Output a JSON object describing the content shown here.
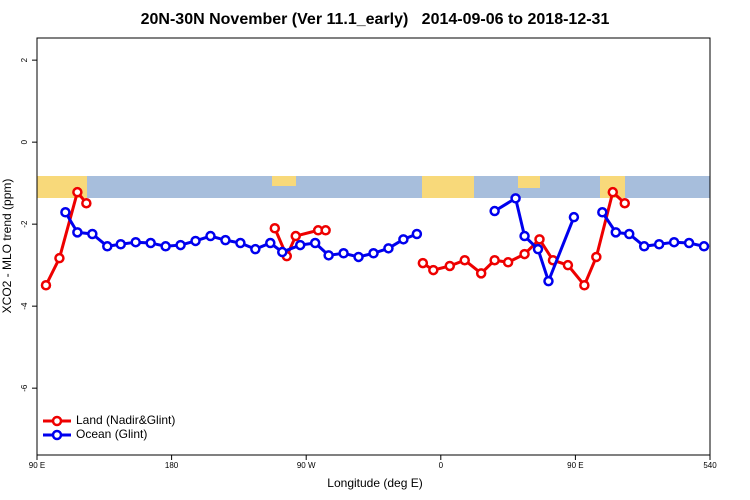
{
  "chart_data": {
    "type": "line",
    "title": "20N-30N November (Ver 11.1_early)   2014-09-06 to 2018-12-31",
    "xlabel": "Longitude (deg E)",
    "ylabel": "XCO2 - MLO trend (ppm)",
    "xlim": [
      90,
      540
    ],
    "xticks": [
      {
        "value": 90,
        "label": "90 E"
      },
      180,
      {
        "value": 270,
        "label": "90 W"
      },
      {
        "value": 360,
        "label": "0"
      },
      {
        "value": 450,
        "label": "90 E"
      },
      540
    ],
    "ylim": [
      -7.63,
      2.54
    ],
    "yticks": [
      -6,
      -4,
      -2,
      0,
      2
    ],
    "legend": "bottom-left",
    "series": [
      {
        "name": "Land (Nadir&Glint)",
        "color": "#ee0000",
        "x": [
          96,
          105,
          117,
          123,
          null,
          249,
          257,
          263,
          278,
          283,
          null,
          348,
          355,
          366,
          376,
          387,
          396,
          405,
          416,
          426,
          435,
          445,
          456,
          464,
          475,
          483
        ],
        "values": [
          -3.49,
          -2.83,
          -1.22,
          -1.49,
          null,
          -2.1,
          -2.78,
          -2.29,
          -2.15,
          -2.15,
          null,
          -2.95,
          -3.12,
          -3.02,
          -2.88,
          -3.2,
          -2.88,
          -2.93,
          -2.73,
          -2.37,
          -2.88,
          -3.0,
          -3.49,
          -2.8,
          -1.22,
          -1.49
        ]
      },
      {
        "name": "Ocean (Glint)",
        "color": "#0000ee",
        "x": [
          109,
          117,
          127,
          137,
          146,
          156,
          166,
          176,
          186,
          196,
          206,
          216,
          226,
          236,
          246,
          254,
          266,
          276,
          285,
          295,
          305,
          315,
          325,
          335,
          344,
          null,
          396,
          410,
          416,
          425,
          432,
          449,
          null,
          468,
          477,
          486,
          496,
          506,
          516,
          526,
          536
        ],
        "values": [
          -1.71,
          -2.2,
          -2.24,
          -2.54,
          -2.49,
          -2.44,
          -2.46,
          -2.54,
          -2.51,
          -2.41,
          -2.29,
          -2.39,
          -2.46,
          -2.61,
          -2.46,
          -2.68,
          -2.51,
          -2.46,
          -2.76,
          -2.71,
          -2.8,
          -2.71,
          -2.59,
          -2.37,
          -2.24,
          null,
          -1.68,
          -1.37,
          -2.29,
          -2.61,
          -3.39,
          -1.83,
          null,
          -1.71,
          -2.2,
          -2.24,
          -2.54,
          -2.49,
          -2.44,
          -2.46,
          -2.54
        ]
      }
    ]
  }
}
